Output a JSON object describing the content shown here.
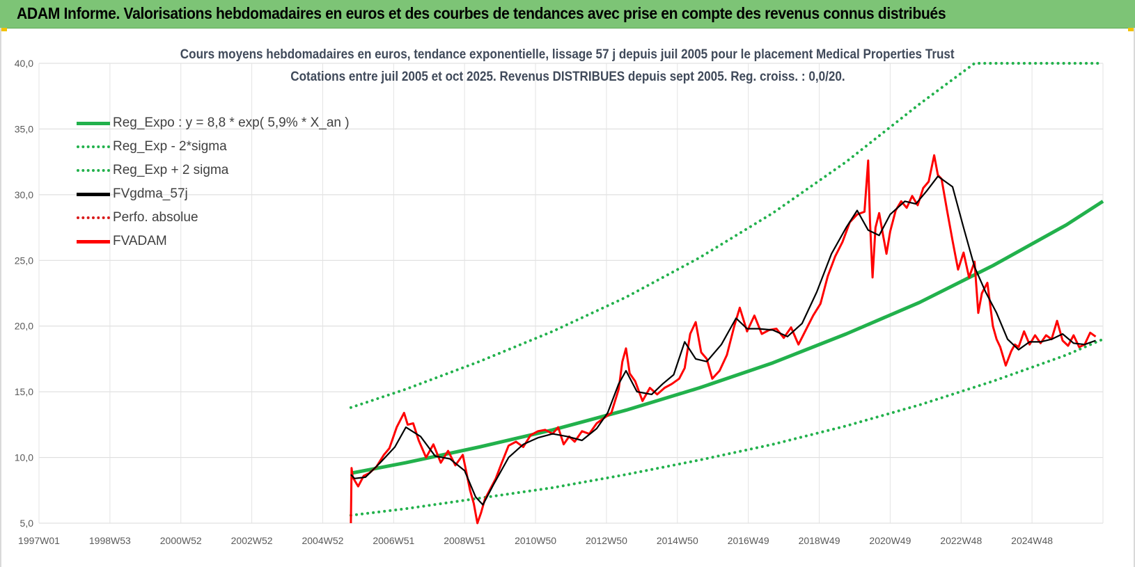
{
  "header": {
    "title": "ADAM Informe. Valorisations hebdomadaires en euros et des courbes de tendances avec prise en compte des revenus connus distribués",
    "background_color": "#7dc476"
  },
  "chart_data": {
    "type": "line",
    "title": "Cours moyens hebdomadaires en euros, tendance exponentielle, lissage 57 j depuis juil 2005 pour le placement Medical Properties Trust",
    "subtitle": "Cotations entre juil 2005 et oct 2025. Revenus DISTRIBUES depuis sept 2005. Reg. croiss. : 0,0/20.",
    "xlabel": "",
    "ylabel": "",
    "x_ticks": [
      "1997W01",
      "1998W53",
      "2000W52",
      "2002W52",
      "2004W52",
      "2006W51",
      "2008W51",
      "2010W50",
      "2012W50",
      "2014W50",
      "2016W49",
      "2018W49",
      "2020W49",
      "2022W48",
      "2024W48"
    ],
    "x_range": [
      1997.0,
      2026.0
    ],
    "ylim": [
      5,
      40
    ],
    "y_ticks": [
      "5,0",
      "10,0",
      "15,0",
      "20,0",
      "25,0",
      "30,0",
      "35,0",
      "40,0"
    ],
    "grid": true,
    "legend_position": "top-left",
    "series": [
      {
        "name": "Reg_Expo : y = 8,8 * exp( 5,9% *  X_an )",
        "color": "#22b14c",
        "style": "solid",
        "x": [
          2005.5,
          2007,
          2009,
          2011,
          2013,
          2015,
          2017,
          2019,
          2021,
          2023,
          2025,
          2026
        ],
        "y": [
          8.8,
          9.6,
          10.8,
          12.1,
          13.6,
          15.3,
          17.2,
          19.4,
          21.8,
          24.6,
          27.7,
          29.5
        ]
      },
      {
        "name": "Reg_Exp - 2*sigma",
        "color": "#22b14c",
        "style": "dotted",
        "x": [
          2005.5,
          2007,
          2009,
          2011,
          2013,
          2015,
          2017,
          2019,
          2021,
          2023,
          2025,
          2026
        ],
        "y": [
          5.6,
          6.1,
          6.9,
          7.7,
          8.7,
          9.8,
          11.0,
          12.4,
          14.0,
          15.8,
          17.8,
          19.0
        ]
      },
      {
        "name": "Reg_Exp + 2 sigma",
        "color": "#22b14c",
        "style": "dotted",
        "x": [
          2005.5,
          2007,
          2009,
          2011,
          2013,
          2015,
          2017,
          2019,
          2021,
          2022.5,
          2023,
          2026
        ],
        "y": [
          13.8,
          15.2,
          17.3,
          19.6,
          22.2,
          25.2,
          28.6,
          32.5,
          36.9,
          40.0,
          40.0,
          40.0
        ]
      },
      {
        "name": "FVgdma_57j",
        "color": "#000000",
        "style": "solid",
        "x": [
          2005.5,
          2005.6,
          2005.9,
          2006.3,
          2006.7,
          2007.0,
          2007.4,
          2007.8,
          2008.2,
          2008.6,
          2008.9,
          2009.1,
          2009.4,
          2009.8,
          2010.2,
          2010.6,
          2011.0,
          2011.4,
          2011.8,
          2012.2,
          2012.5,
          2012.8,
          2013.0,
          2013.3,
          2013.7,
          2014.0,
          2014.3,
          2014.6,
          2014.9,
          2015.2,
          2015.6,
          2016.0,
          2016.3,
          2016.6,
          2017.0,
          2017.4,
          2017.8,
          2018.2,
          2018.6,
          2019.0,
          2019.3,
          2019.6,
          2019.9,
          2020.2,
          2020.6,
          2020.9,
          2021.2,
          2021.5,
          2021.9,
          2022.2,
          2022.5,
          2022.8,
          2023.1,
          2023.4,
          2023.7,
          2024.0,
          2024.3,
          2024.6,
          2024.9,
          2025.2,
          2025.5,
          2025.8
        ],
        "y": [
          8.7,
          8.4,
          8.5,
          9.6,
          10.8,
          12.3,
          11.6,
          10.1,
          9.9,
          9.0,
          7.0,
          6.4,
          8.0,
          10.0,
          11.0,
          11.5,
          11.8,
          11.6,
          11.3,
          12.2,
          13.4,
          15.6,
          16.6,
          15.0,
          14.8,
          15.6,
          16.3,
          18.8,
          17.5,
          17.3,
          18.6,
          20.6,
          19.8,
          19.8,
          19.7,
          19.2,
          20.2,
          22.6,
          25.5,
          27.5,
          28.8,
          27.3,
          26.9,
          28.5,
          29.5,
          29.3,
          30.3,
          31.4,
          30.6,
          27.5,
          24.5,
          22.6,
          21.0,
          19.0,
          18.2,
          18.8,
          18.8,
          19.0,
          19.4,
          18.7,
          18.6,
          18.9
        ]
      },
      {
        "name": "Perfo. absolue",
        "color": "#d91a1a",
        "style": "dotted",
        "x": [],
        "y": []
      },
      {
        "name": "FVADAM",
        "color": "#ff0000",
        "style": "solid",
        "x": [
          2005.5,
          2005.52,
          2005.55,
          2005.7,
          2005.85,
          2006.0,
          2006.2,
          2006.4,
          2006.55,
          2006.75,
          2006.95,
          2007.05,
          2007.2,
          2007.35,
          2007.55,
          2007.75,
          2007.95,
          2008.15,
          2008.35,
          2008.55,
          2008.75,
          2008.85,
          2008.95,
          2009.05,
          2009.15,
          2009.3,
          2009.45,
          2009.6,
          2009.8,
          2010.0,
          2010.2,
          2010.4,
          2010.6,
          2010.8,
          2011.0,
          2011.15,
          2011.3,
          2011.45,
          2011.6,
          2011.8,
          2012.0,
          2012.2,
          2012.4,
          2012.6,
          2012.8,
          2012.9,
          2013.0,
          2013.1,
          2013.25,
          2013.45,
          2013.65,
          2013.85,
          2014.05,
          2014.25,
          2014.45,
          2014.6,
          2014.75,
          2014.9,
          2015.05,
          2015.2,
          2015.35,
          2015.55,
          2015.75,
          2015.95,
          2016.1,
          2016.3,
          2016.5,
          2016.7,
          2016.9,
          2017.1,
          2017.3,
          2017.5,
          2017.7,
          2017.9,
          2018.1,
          2018.3,
          2018.5,
          2018.7,
          2018.9,
          2019.1,
          2019.3,
          2019.5,
          2019.6,
          2019.65,
          2019.72,
          2019.8,
          2019.9,
          2020.0,
          2020.1,
          2020.2,
          2020.35,
          2020.5,
          2020.65,
          2020.8,
          2020.95,
          2021.1,
          2021.25,
          2021.4,
          2021.5,
          2021.6,
          2021.75,
          2021.9,
          2022.05,
          2022.2,
          2022.35,
          2022.5,
          2022.6,
          2022.7,
          2022.85,
          2023.0,
          2023.1,
          2023.2,
          2023.35,
          2023.5,
          2023.6,
          2023.7,
          2023.85,
          2024.0,
          2024.15,
          2024.3,
          2024.45,
          2024.6,
          2024.75,
          2024.9,
          2025.05,
          2025.2,
          2025.35,
          2025.5,
          2025.65,
          2025.8
        ],
        "y": [
          5.0,
          9.2,
          8.5,
          7.8,
          8.6,
          8.8,
          9.3,
          10.2,
          10.7,
          12.3,
          13.4,
          12.5,
          12.6,
          11.3,
          10.0,
          11.0,
          9.6,
          10.5,
          9.4,
          10.2,
          7.5,
          6.5,
          5.0,
          5.8,
          6.8,
          7.6,
          8.4,
          9.5,
          10.9,
          11.2,
          10.8,
          11.7,
          12.0,
          12.1,
          11.8,
          12.3,
          11.0,
          11.6,
          11.2,
          12.0,
          11.8,
          12.6,
          13.0,
          13.4,
          15.2,
          17.3,
          18.3,
          16.4,
          15.8,
          14.3,
          15.3,
          14.8,
          15.3,
          15.6,
          16.0,
          16.8,
          19.4,
          20.3,
          18.0,
          17.5,
          16.0,
          16.6,
          17.8,
          20.0,
          21.4,
          19.6,
          20.8,
          19.4,
          19.7,
          19.8,
          19.1,
          19.9,
          18.6,
          19.7,
          20.8,
          21.7,
          23.8,
          25.3,
          26.4,
          27.9,
          28.5,
          28.7,
          32.6,
          28.0,
          23.7,
          27.5,
          28.6,
          27.0,
          25.5,
          27.2,
          28.8,
          29.5,
          29.0,
          29.9,
          29.2,
          30.5,
          31.0,
          33.0,
          31.5,
          31.2,
          28.8,
          26.5,
          24.3,
          25.6,
          23.7,
          24.9,
          21.0,
          22.5,
          23.3,
          20.0,
          19.0,
          18.4,
          17.0,
          18.1,
          18.6,
          18.4,
          19.6,
          18.6,
          19.3,
          18.7,
          19.3,
          19.0,
          20.4,
          18.9,
          18.5,
          19.3,
          18.4,
          18.6,
          19.5,
          19.2
        ]
      }
    ]
  }
}
